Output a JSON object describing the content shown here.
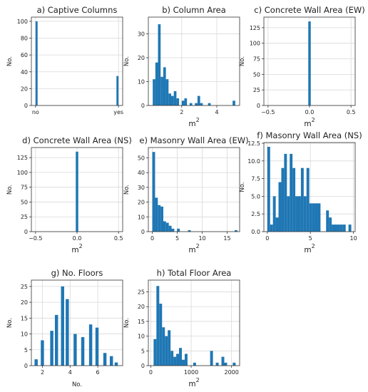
{
  "colors": {
    "bar": "#1f77b4",
    "grid": "#d9d9d9",
    "axis": "#333333"
  },
  "chart_data": [
    {
      "type": "bar",
      "title": "a) Captive Columns",
      "xlabel": "",
      "ylabel": "No.",
      "xlim": [
        -0.05,
        1.05
      ],
      "ylim": [
        0,
        105
      ],
      "xticks": [
        {
          "v": 0,
          "label": "no"
        },
        {
          "v": 1,
          "label": "yes"
        }
      ],
      "yticks": [
        0,
        20,
        40,
        60,
        80,
        100
      ],
      "bin_width": 0.025,
      "bins": [
        {
          "x": 0,
          "y": 100
        },
        {
          "x": 0.975,
          "y": 35
        }
      ]
    },
    {
      "type": "bar",
      "title": "b) Column Area",
      "xlabel": "m",
      "xlabel_sup": "2",
      "ylabel": "No.",
      "xlim": [
        0.1,
        5.3
      ],
      "ylim": [
        0,
        37
      ],
      "xticks": [
        {
          "v": 2,
          "label": "2"
        },
        {
          "v": 4,
          "label": "4"
        }
      ],
      "yticks": [
        0,
        10,
        20,
        30
      ],
      "bin_width": 0.15,
      "bins": [
        {
          "x": 0.35,
          "y": 11
        },
        {
          "x": 0.5,
          "y": 18
        },
        {
          "x": 0.65,
          "y": 34
        },
        {
          "x": 0.8,
          "y": 12
        },
        {
          "x": 0.95,
          "y": 16
        },
        {
          "x": 1.1,
          "y": 11
        },
        {
          "x": 1.25,
          "y": 5
        },
        {
          "x": 1.4,
          "y": 4
        },
        {
          "x": 1.55,
          "y": 6
        },
        {
          "x": 1.7,
          "y": 3
        },
        {
          "x": 2.0,
          "y": 2
        },
        {
          "x": 2.15,
          "y": 3
        },
        {
          "x": 2.45,
          "y": 1
        },
        {
          "x": 2.75,
          "y": 1
        },
        {
          "x": 2.9,
          "y": 4
        },
        {
          "x": 3.05,
          "y": 1
        },
        {
          "x": 3.5,
          "y": 1
        },
        {
          "x": 4.9,
          "y": 2
        }
      ]
    },
    {
      "type": "bar",
      "title": "c) Concrete Wall Area (EW)",
      "xlabel": "m",
      "xlabel_sup": "2",
      "ylabel": "No.",
      "xlim": [
        -0.55,
        0.55
      ],
      "ylim": [
        0,
        142
      ],
      "xticks": [
        {
          "v": -0.5,
          "label": "−0.5"
        },
        {
          "v": 0,
          "label": "0.0"
        },
        {
          "v": 0.5,
          "label": "0.5"
        }
      ],
      "yticks": [
        0,
        25,
        50,
        75,
        100,
        125
      ],
      "bin_width": 0.03,
      "bins": [
        {
          "x": -0.015,
          "y": 135
        }
      ]
    },
    {
      "type": "bar",
      "title": "d) Concrete Wall Area (NS)",
      "xlabel": "m",
      "xlabel_sup": "2",
      "ylabel": "No.",
      "xlim": [
        -0.55,
        0.55
      ],
      "ylim": [
        0,
        142
      ],
      "xticks": [
        {
          "v": -0.5,
          "label": "−0.5"
        },
        {
          "v": 0,
          "label": "0.0"
        },
        {
          "v": 0.5,
          "label": "0.5"
        }
      ],
      "yticks": [
        0,
        25,
        50,
        75,
        100,
        125
      ],
      "bin_width": 0.03,
      "bins": [
        {
          "x": -0.015,
          "y": 135
        }
      ]
    },
    {
      "type": "bar",
      "title": "e) Masonry Wall Area (EW)",
      "xlabel": "m",
      "xlabel_sup": "2",
      "ylabel": "No.",
      "xlim": [
        -0.8,
        17.5
      ],
      "ylim": [
        0,
        57
      ],
      "xticks": [
        {
          "v": 0,
          "label": "0"
        },
        {
          "v": 5,
          "label": "5"
        },
        {
          "v": 10,
          "label": "10"
        },
        {
          "v": 15,
          "label": "15"
        }
      ],
      "yticks": [
        0,
        10,
        20,
        30,
        40,
        50
      ],
      "bin_width": 0.55,
      "bins": [
        {
          "x": 0,
          "y": 54
        },
        {
          "x": 0.55,
          "y": 23
        },
        {
          "x": 1.1,
          "y": 18
        },
        {
          "x": 1.65,
          "y": 17
        },
        {
          "x": 2.2,
          "y": 7
        },
        {
          "x": 2.75,
          "y": 6
        },
        {
          "x": 3.3,
          "y": 4
        },
        {
          "x": 3.85,
          "y": 2
        },
        {
          "x": 4.95,
          "y": 2
        },
        {
          "x": 7.15,
          "y": 1
        },
        {
          "x": 16.5,
          "y": 1
        }
      ]
    },
    {
      "type": "bar",
      "title": "f) Masonry Wall Area (NS)",
      "xlabel": "m",
      "xlabel_sup": "2",
      "ylabel": "No.",
      "xlim": [
        -0.4,
        10.2
      ],
      "ylim": [
        0,
        12.6
      ],
      "xticks": [
        {
          "v": 0,
          "label": "0"
        },
        {
          "v": 5,
          "label": "5"
        },
        {
          "v": 10,
          "label": "10"
        }
      ],
      "yticks": [
        {
          "v": 0,
          "label": "0.0"
        },
        {
          "v": 2.5,
          "label": "2.5"
        },
        {
          "v": 5,
          "label": "5.0"
        },
        {
          "v": 7.5,
          "label": "7.5"
        },
        {
          "v": 10,
          "label": "10.0"
        },
        {
          "v": 12.5,
          "label": "12.5"
        }
      ],
      "bin_width": 0.325,
      "bins": [
        {
          "x": 0,
          "y": 12
        },
        {
          "x": 0.325,
          "y": 1
        },
        {
          "x": 0.65,
          "y": 5
        },
        {
          "x": 0.975,
          "y": 2
        },
        {
          "x": 1.3,
          "y": 7
        },
        {
          "x": 1.625,
          "y": 9
        },
        {
          "x": 1.95,
          "y": 11
        },
        {
          "x": 2.275,
          "y": 5
        },
        {
          "x": 2.6,
          "y": 11
        },
        {
          "x": 2.925,
          "y": 9
        },
        {
          "x": 3.25,
          "y": 5
        },
        {
          "x": 3.575,
          "y": 5
        },
        {
          "x": 3.9,
          "y": 9
        },
        {
          "x": 4.225,
          "y": 5
        },
        {
          "x": 4.55,
          "y": 9
        },
        {
          "x": 4.875,
          "y": 4
        },
        {
          "x": 5.2,
          "y": 4
        },
        {
          "x": 5.525,
          "y": 4
        },
        {
          "x": 5.85,
          "y": 4
        },
        {
          "x": 6.825,
          "y": 3
        },
        {
          "x": 7.15,
          "y": 2
        },
        {
          "x": 7.475,
          "y": 1
        },
        {
          "x": 7.8,
          "y": 1
        },
        {
          "x": 8.125,
          "y": 1
        },
        {
          "x": 8.45,
          "y": 1
        },
        {
          "x": 8.775,
          "y": 1
        },
        {
          "x": 9.425,
          "y": 1
        }
      ]
    },
    {
      "type": "bar",
      "title": "g) No. Floors",
      "xlabel": "No.",
      "ylabel": "No.",
      "xlim": [
        1.2,
        7.8
      ],
      "ylim": [
        0,
        27
      ],
      "xticks": [
        {
          "v": 2,
          "label": "2"
        },
        {
          "v": 4,
          "label": "4"
        },
        {
          "v": 6,
          "label": "6"
        }
      ],
      "yticks": [
        0,
        5,
        10,
        15,
        20,
        25
      ],
      "bin_width": 0.23,
      "bins": [
        {
          "x": 1.43,
          "y": 2
        },
        {
          "x": 1.88,
          "y": 8
        },
        {
          "x": 2.56,
          "y": 11
        },
        {
          "x": 2.9,
          "y": 16
        },
        {
          "x": 3.34,
          "y": 25
        },
        {
          "x": 3.68,
          "y": 21
        },
        {
          "x": 4.25,
          "y": 10
        },
        {
          "x": 4.8,
          "y": 9
        },
        {
          "x": 5.37,
          "y": 13
        },
        {
          "x": 5.83,
          "y": 12
        },
        {
          "x": 6.4,
          "y": 4
        },
        {
          "x": 6.87,
          "y": 3
        },
        {
          "x": 7.22,
          "y": 1
        }
      ]
    },
    {
      "type": "bar",
      "title": "h) Total Floor Area",
      "xlabel": "m",
      "xlabel_sup": "2",
      "ylabel": "No.",
      "xlim": [
        -60,
        2200
      ],
      "ylim": [
        0,
        29
      ],
      "xticks": [
        {
          "v": 0,
          "label": "0"
        },
        {
          "v": 1000,
          "label": "1000"
        },
        {
          "v": 2000,
          "label": "2000"
        }
      ],
      "yticks": [
        0,
        5,
        10,
        15,
        20,
        25
      ],
      "bin_width": 70,
      "bins": [
        {
          "x": 70,
          "y": 9
        },
        {
          "x": 140,
          "y": 27
        },
        {
          "x": 210,
          "y": 21
        },
        {
          "x": 280,
          "y": 13
        },
        {
          "x": 350,
          "y": 10
        },
        {
          "x": 420,
          "y": 12
        },
        {
          "x": 490,
          "y": 5
        },
        {
          "x": 560,
          "y": 3
        },
        {
          "x": 630,
          "y": 4
        },
        {
          "x": 700,
          "y": 6
        },
        {
          "x": 770,
          "y": 2
        },
        {
          "x": 840,
          "y": 4
        },
        {
          "x": 1050,
          "y": 1
        },
        {
          "x": 1470,
          "y": 5
        },
        {
          "x": 1610,
          "y": 1
        },
        {
          "x": 1750,
          "y": 3
        },
        {
          "x": 1820,
          "y": 1
        },
        {
          "x": 2030,
          "y": 1
        }
      ]
    }
  ]
}
